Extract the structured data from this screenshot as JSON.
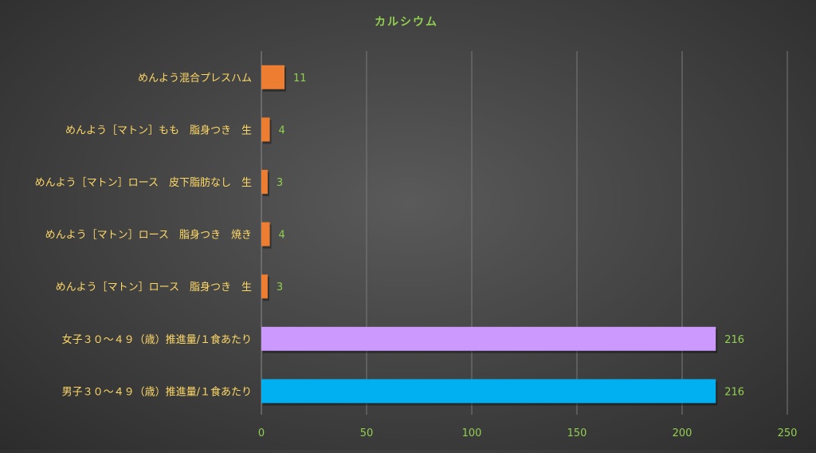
{
  "chart_data": {
    "type": "bar",
    "orientation": "horizontal",
    "title": "カルシウム",
    "xlabel": "",
    "ylabel": "",
    "xlim": [
      0,
      250
    ],
    "x_ticks": [
      0,
      50,
      100,
      150,
      200,
      250
    ],
    "grid": "vertical",
    "legend": "none",
    "categories": [
      "めんよう混合プレスハム",
      "めんよう［マトン］もも　脂身つき　生",
      "めんよう［マトン］ロース　皮下脂肪なし　生",
      "めんよう［マトン］ロース　脂身つき　焼き",
      "めんよう［マトン］ロース　脂身つき　生",
      "女子３０～４９（歳）推進量/１食あたり",
      "男子３０～４９（歳）推進量/１食あたり"
    ],
    "values": [
      11,
      4,
      3,
      4,
      3,
      216,
      216
    ],
    "bar_colors": [
      "#ed7d31",
      "#ed7d31",
      "#ed7d31",
      "#ed7d31",
      "#ed7d31",
      "#cc99ff",
      "#00b0f0"
    ],
    "colors": {
      "title": "#92d050",
      "category_label": "#ffd966",
      "value_label": "#92d050",
      "tick_label": "#92d050",
      "gridline": "#7a7a7a"
    }
  }
}
